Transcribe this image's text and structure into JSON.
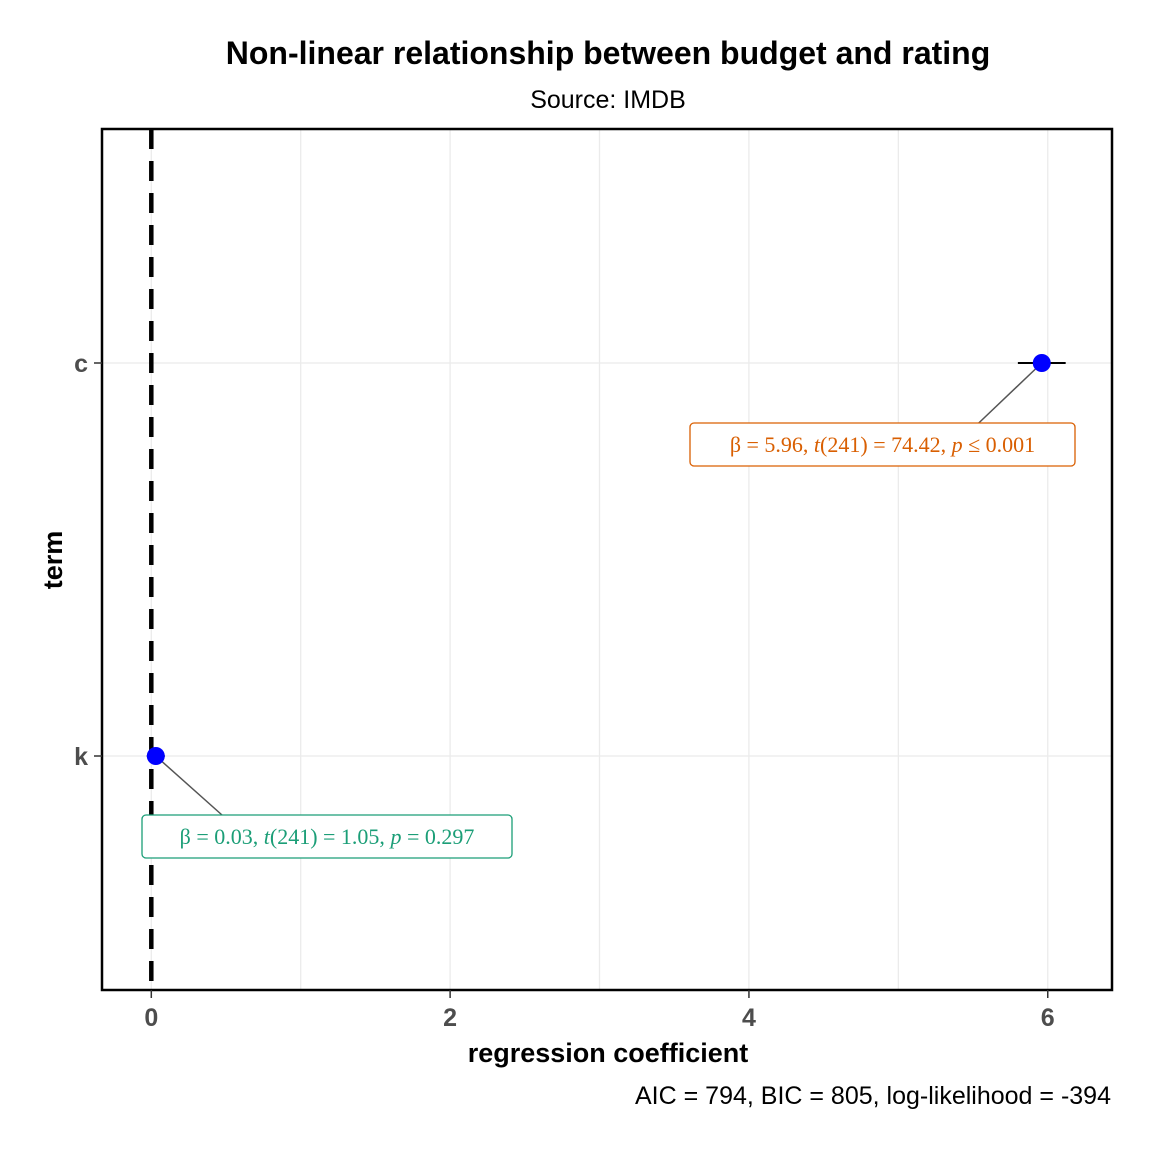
{
  "chart_data": {
    "type": "scatter",
    "title": "Non-linear relationship between budget and rating",
    "subtitle": "Source: IMDB",
    "xlabel": "regression coefficient",
    "ylabel": "term",
    "caption": "AIC = 794, BIC = 805, log-likelihood = -394",
    "xlim": [
      -0.33,
      6.43
    ],
    "x_ticks": [
      "0",
      "2",
      "4",
      "6"
    ],
    "x_tick_values": [
      0,
      2,
      4,
      6
    ],
    "categories": [
      "c",
      "k"
    ],
    "reference_line_x": 0,
    "grid": true,
    "legend": "none",
    "point_color": "#0000ff",
    "points": [
      {
        "term": "c",
        "estimate": 5.96,
        "conf_low": 5.8,
        "conf_high": 6.12,
        "label_parts": [
          "β = 5.96, ",
          "t",
          "(241) = 74.42, ",
          "p",
          " ≤ 0.001"
        ],
        "label_color": "#d95f02"
      },
      {
        "term": "k",
        "estimate": 0.03,
        "conf_low": -0.03,
        "conf_high": 0.09,
        "label_parts": [
          "β = 0.03, ",
          "t",
          "(241) = 1.05, ",
          "p",
          " = 0.297"
        ],
        "label_color": "#1b9e77"
      }
    ]
  }
}
